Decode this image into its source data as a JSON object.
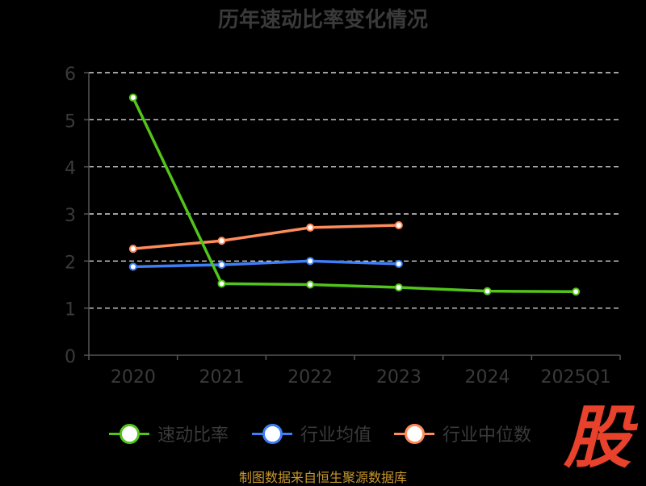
{
  "title": "历年速动比率变化情况",
  "source": "制图数据来自恒生聚源数据库",
  "logo_text": "股",
  "colors": {
    "background": "#000000",
    "axis": "#555555",
    "grid": "#ffffff",
    "tick_text": "#3a3a3a",
    "logo": "#e8412c",
    "source": "#c8972c"
  },
  "chart_data": {
    "type": "line",
    "categories": [
      "2020",
      "2021",
      "2022",
      "2023",
      "2024",
      "2025Q1"
    ],
    "ylim": [
      0,
      6
    ],
    "yticks": [
      "0",
      "1",
      "2",
      "3",
      "4",
      "5",
      "6"
    ],
    "grid": "horizontal-dashed",
    "legend_position": "bottom",
    "series": [
      {
        "name": "速动比率",
        "color": "#52c41a",
        "values": [
          5.47,
          1.52,
          1.5,
          1.44,
          1.36,
          1.35
        ]
      },
      {
        "name": "行业均值",
        "color": "#3f7ff5",
        "values": [
          1.88,
          1.92,
          2.0,
          1.94,
          null,
          null
        ]
      },
      {
        "name": "行业中位数",
        "color": "#ff8c5a",
        "values": [
          2.26,
          2.43,
          2.71,
          2.76,
          null,
          null
        ]
      }
    ]
  }
}
